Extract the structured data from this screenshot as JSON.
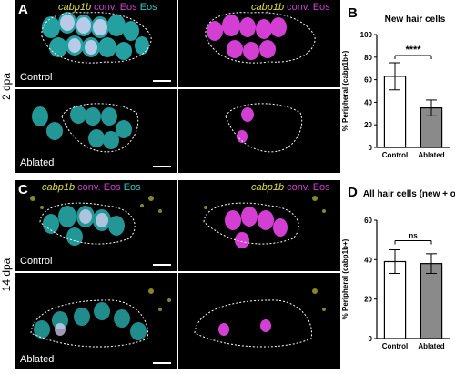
{
  "figure": {
    "row1_time": "2 dpa",
    "row2_time": "14 dpa",
    "panel_a": "A",
    "panel_b": "B",
    "panel_c": "C",
    "panel_d": "D",
    "control_label": "Control",
    "ablated_label": "Ablated",
    "legend_gene": "cabp1b",
    "legend_conv": "conv. Eos",
    "legend_eos": "Eos"
  },
  "colors": {
    "bar_control": "#ffffff",
    "bar_ablated": "#8a8a8a",
    "cyan": "#2fc8c8",
    "magenta": "#d33fd3",
    "yellow": "#e3e13a"
  },
  "chart_data": [
    {
      "type": "bar",
      "title": "New hair cells",
      "ylabel": "% Peripheral (cabp1b+)",
      "categories": [
        "Control",
        "Ablated"
      ],
      "values": [
        63,
        35
      ],
      "errors": [
        12,
        7
      ],
      "ylim": [
        0,
        100
      ],
      "yticks": [
        "0",
        "20",
        "40",
        "60",
        "80",
        "100"
      ],
      "significance": "****"
    },
    {
      "type": "bar",
      "title": "All hair cells (new + old)",
      "ylabel": "% Peripheral (cabp1b+)",
      "categories": [
        "Control",
        "Ablated"
      ],
      "values": [
        39,
        38
      ],
      "errors": [
        6,
        5
      ],
      "ylim": [
        0,
        60
      ],
      "yticks": [
        "0",
        "20",
        "40",
        "60"
      ],
      "significance": "ns"
    }
  ]
}
